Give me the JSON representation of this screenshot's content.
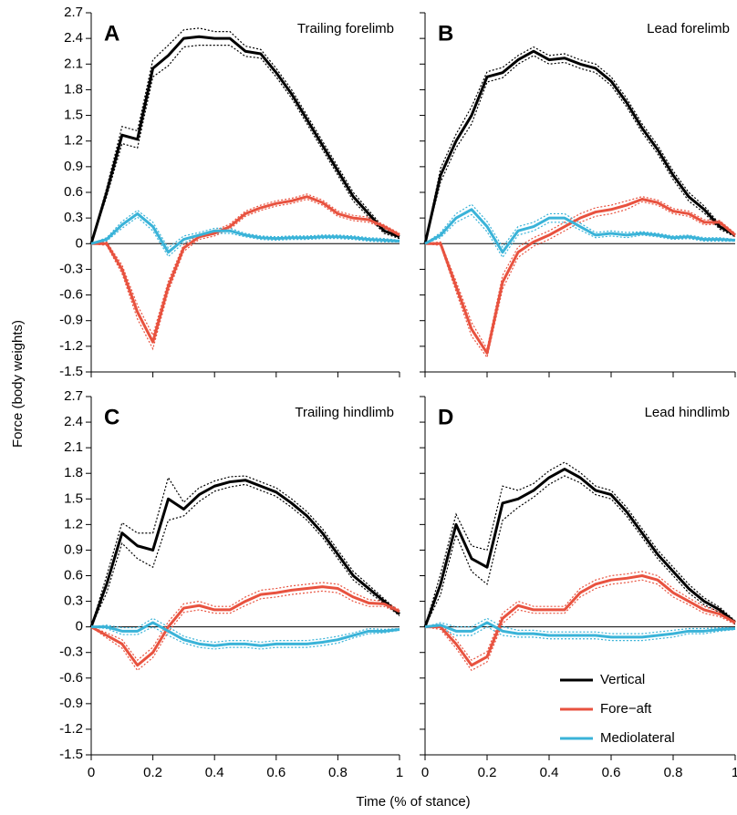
{
  "ylabel": "Force (body weights)",
  "xlabel": "Time (% of stance)",
  "chart_data": [
    {
      "type": "line",
      "panel_label": "A",
      "title": "Trailing forelimb",
      "ytick_labels": true,
      "xtick_labels": false,
      "zero_line": true,
      "x": [
        0,
        0.05,
        0.1,
        0.15,
        0.2,
        0.25,
        0.3,
        0.35,
        0.4,
        0.45,
        0.5,
        0.55,
        0.6,
        0.65,
        0.7,
        0.75,
        0.8,
        0.85,
        0.9,
        0.95,
        1
      ],
      "xlim": [
        0,
        1
      ],
      "xticks": [
        0,
        0.2,
        0.4,
        0.6,
        0.8,
        1
      ],
      "ylim": [
        -1.5,
        2.7
      ],
      "yticks": [
        -1.5,
        -1.2,
        -0.9,
        -0.6,
        -0.3,
        0,
        0.3,
        0.6,
        0.9,
        1.2,
        1.5,
        1.8,
        2.1,
        2.4,
        2.7
      ],
      "series": [
        {
          "color": "#000000",
          "values": [
            0,
            0.6,
            1.27,
            1.22,
            2.05,
            2.2,
            2.4,
            2.42,
            2.4,
            2.4,
            2.25,
            2.22,
            2.0,
            1.75,
            1.45,
            1.15,
            0.85,
            0.55,
            0.35,
            0.15,
            0.08
          ],
          "errors": [
            0,
            0.05,
            0.1,
            0.1,
            0.1,
            0.12,
            0.1,
            0.1,
            0.08,
            0.08,
            0.06,
            0.05,
            0.05,
            0.05,
            0.05,
            0.05,
            0.05,
            0.05,
            0.04,
            0.03,
            0.02
          ]
        },
        {
          "color": "#e8523f",
          "values": [
            0,
            0,
            -0.3,
            -0.8,
            -1.15,
            -0.5,
            -0.05,
            0.08,
            0.12,
            0.2,
            0.35,
            0.42,
            0.47,
            0.5,
            0.55,
            0.48,
            0.35,
            0.3,
            0.28,
            0.2,
            0.1
          ],
          "errors": [
            0,
            0.02,
            0.05,
            0.08,
            0.08,
            0.06,
            0.04,
            0.03,
            0.03,
            0.03,
            0.03,
            0.03,
            0.03,
            0.03,
            0.03,
            0.03,
            0.03,
            0.03,
            0.03,
            0.02,
            0.02
          ]
        },
        {
          "color": "#3ab3d8",
          "values": [
            0,
            0.05,
            0.22,
            0.35,
            0.2,
            -0.1,
            0.05,
            0.1,
            0.15,
            0.15,
            0.1,
            0.07,
            0.06,
            0.07,
            0.07,
            0.08,
            0.08,
            0.07,
            0.05,
            0.04,
            0.03
          ],
          "errors": [
            0,
            0.02,
            0.04,
            0.04,
            0.05,
            0.05,
            0.04,
            0.03,
            0.03,
            0.03,
            0.02,
            0.02,
            0.02,
            0.02,
            0.02,
            0.02,
            0.02,
            0.02,
            0.02,
            0.02,
            0.01
          ]
        }
      ]
    },
    {
      "type": "line",
      "panel_label": "B",
      "title": "Lead forelimb",
      "ytick_labels": false,
      "xtick_labels": false,
      "zero_line": true,
      "x": [
        0,
        0.05,
        0.1,
        0.15,
        0.2,
        0.25,
        0.3,
        0.35,
        0.4,
        0.45,
        0.5,
        0.55,
        0.6,
        0.65,
        0.7,
        0.75,
        0.8,
        0.85,
        0.9,
        0.95,
        1
      ],
      "xlim": [
        0,
        1
      ],
      "xticks": [
        0,
        0.2,
        0.4,
        0.6,
        0.8,
        1
      ],
      "ylim": [
        -1.5,
        2.7
      ],
      "yticks": [
        -1.5,
        -1.2,
        -0.9,
        -0.6,
        -0.3,
        0,
        0.3,
        0.6,
        0.9,
        1.2,
        1.5,
        1.8,
        2.1,
        2.4,
        2.7
      ],
      "series": [
        {
          "color": "#000000",
          "values": [
            0,
            0.8,
            1.2,
            1.5,
            1.95,
            2.0,
            2.15,
            2.25,
            2.15,
            2.17,
            2.1,
            2.05,
            1.9,
            1.65,
            1.35,
            1.1,
            0.8,
            0.55,
            0.4,
            0.2,
            0.1
          ],
          "errors": [
            0,
            0.08,
            0.08,
            0.1,
            0.06,
            0.06,
            0.05,
            0.05,
            0.05,
            0.05,
            0.05,
            0.05,
            0.05,
            0.05,
            0.05,
            0.05,
            0.05,
            0.05,
            0.04,
            0.03,
            0.02
          ]
        },
        {
          "color": "#e8523f",
          "values": [
            0,
            0,
            -0.5,
            -1.0,
            -1.28,
            -0.45,
            -0.1,
            0.02,
            0.1,
            0.2,
            0.3,
            0.37,
            0.4,
            0.45,
            0.52,
            0.48,
            0.38,
            0.35,
            0.25,
            0.25,
            0.1
          ],
          "errors": [
            0,
            0.02,
            0.06,
            0.08,
            0.05,
            0.08,
            0.06,
            0.05,
            0.05,
            0.05,
            0.05,
            0.05,
            0.05,
            0.05,
            0.03,
            0.03,
            0.03,
            0.03,
            0.03,
            0.02,
            0.02
          ]
        },
        {
          "color": "#3ab3d8",
          "values": [
            0,
            0.1,
            0.3,
            0.4,
            0.2,
            -0.1,
            0.15,
            0.2,
            0.3,
            0.3,
            0.2,
            0.1,
            0.12,
            0.1,
            0.12,
            0.1,
            0.07,
            0.08,
            0.05,
            0.05,
            0.04
          ],
          "errors": [
            0,
            0.03,
            0.05,
            0.06,
            0.06,
            0.06,
            0.05,
            0.05,
            0.05,
            0.05,
            0.04,
            0.03,
            0.03,
            0.03,
            0.02,
            0.02,
            0.02,
            0.02,
            0.02,
            0.02,
            0.01
          ]
        }
      ]
    },
    {
      "type": "line",
      "panel_label": "C",
      "title": "Trailing hindlimb",
      "ytick_labels": true,
      "xtick_labels": true,
      "zero_line": true,
      "x": [
        0,
        0.05,
        0.1,
        0.15,
        0.2,
        0.25,
        0.3,
        0.35,
        0.4,
        0.45,
        0.5,
        0.55,
        0.6,
        0.65,
        0.7,
        0.75,
        0.8,
        0.85,
        0.9,
        0.95,
        1
      ],
      "xlim": [
        0,
        1
      ],
      "xticks": [
        0,
        0.2,
        0.4,
        0.6,
        0.8,
        1
      ],
      "ylim": [
        -1.5,
        2.7
      ],
      "yticks": [
        -1.5,
        -1.2,
        -0.9,
        -0.6,
        -0.3,
        0,
        0.3,
        0.6,
        0.9,
        1.2,
        1.5,
        1.8,
        2.1,
        2.4,
        2.7
      ],
      "series": [
        {
          "color": "#000000",
          "values": [
            0,
            0.5,
            1.1,
            0.95,
            0.9,
            1.5,
            1.38,
            1.55,
            1.65,
            1.7,
            1.72,
            1.65,
            1.58,
            1.45,
            1.3,
            1.1,
            0.85,
            0.6,
            0.45,
            0.3,
            0.15
          ],
          "errors": [
            0,
            0.1,
            0.12,
            0.15,
            0.2,
            0.25,
            0.08,
            0.08,
            0.06,
            0.06,
            0.05,
            0.05,
            0.05,
            0.05,
            0.05,
            0.05,
            0.05,
            0.05,
            0.04,
            0.03,
            0.02
          ]
        },
        {
          "color": "#e8523f",
          "values": [
            0,
            -0.1,
            -0.2,
            -0.45,
            -0.3,
            0,
            0.22,
            0.25,
            0.2,
            0.2,
            0.3,
            0.38,
            0.4,
            0.43,
            0.45,
            0.47,
            0.45,
            0.35,
            0.28,
            0.27,
            0.18
          ],
          "errors": [
            0,
            0.03,
            0.05,
            0.06,
            0.06,
            0.06,
            0.05,
            0.05,
            0.04,
            0.04,
            0.05,
            0.05,
            0.05,
            0.05,
            0.05,
            0.05,
            0.05,
            0.05,
            0.04,
            0.03,
            0.02
          ]
        },
        {
          "color": "#3ab3d8",
          "values": [
            0,
            0,
            -0.05,
            -0.05,
            0.05,
            -0.05,
            -0.15,
            -0.2,
            -0.22,
            -0.2,
            -0.2,
            -0.22,
            -0.2,
            -0.2,
            -0.2,
            -0.18,
            -0.15,
            -0.1,
            -0.05,
            -0.05,
            -0.03
          ],
          "errors": [
            0,
            0.02,
            0.04,
            0.04,
            0.05,
            0.05,
            0.04,
            0.04,
            0.04,
            0.04,
            0.04,
            0.04,
            0.04,
            0.04,
            0.04,
            0.04,
            0.04,
            0.03,
            0.03,
            0.02,
            0.01
          ]
        }
      ]
    },
    {
      "type": "line",
      "panel_label": "D",
      "title": "Lead hindlimb",
      "ytick_labels": false,
      "xtick_labels": true,
      "zero_line": true,
      "legend": "lower right",
      "x": [
        0,
        0.05,
        0.1,
        0.15,
        0.2,
        0.25,
        0.3,
        0.35,
        0.4,
        0.45,
        0.5,
        0.55,
        0.6,
        0.65,
        0.7,
        0.75,
        0.8,
        0.85,
        0.9,
        0.95,
        1
      ],
      "xlim": [
        0,
        1
      ],
      "xticks": [
        0,
        0.2,
        0.4,
        0.6,
        0.8,
        1
      ],
      "ylim": [
        -1.5,
        2.7
      ],
      "yticks": [
        -1.5,
        -1.2,
        -0.9,
        -0.6,
        -0.3,
        0,
        0.3,
        0.6,
        0.9,
        1.2,
        1.5,
        1.8,
        2.1,
        2.4,
        2.7
      ],
      "series": [
        {
          "name": "Vertical",
          "color": "#000000",
          "values": [
            0,
            0.5,
            1.2,
            0.8,
            0.7,
            1.45,
            1.5,
            1.6,
            1.75,
            1.85,
            1.75,
            1.6,
            1.55,
            1.35,
            1.1,
            0.85,
            0.65,
            0.45,
            0.3,
            0.2,
            0.05
          ],
          "errors": [
            0,
            0.12,
            0.12,
            0.15,
            0.2,
            0.2,
            0.1,
            0.08,
            0.08,
            0.08,
            0.06,
            0.05,
            0.05,
            0.05,
            0.05,
            0.05,
            0.05,
            0.05,
            0.04,
            0.03,
            0.02
          ]
        },
        {
          "name": "Fore−aft",
          "color": "#e8523f",
          "values": [
            0,
            0,
            -0.2,
            -0.45,
            -0.35,
            0.1,
            0.25,
            0.2,
            0.2,
            0.2,
            0.4,
            0.5,
            0.55,
            0.57,
            0.6,
            0.55,
            0.4,
            0.3,
            0.2,
            0.15,
            0.05
          ],
          "errors": [
            0,
            0.03,
            0.05,
            0.06,
            0.06,
            0.06,
            0.05,
            0.04,
            0.04,
            0.04,
            0.05,
            0.05,
            0.05,
            0.05,
            0.05,
            0.05,
            0.05,
            0.04,
            0.04,
            0.03,
            0.02
          ]
        },
        {
          "name": "Mediolateral",
          "color": "#3ab3d8",
          "values": [
            0,
            0.02,
            -0.05,
            -0.05,
            0.05,
            -0.05,
            -0.08,
            -0.08,
            -0.1,
            -0.1,
            -0.1,
            -0.1,
            -0.12,
            -0.12,
            -0.12,
            -0.1,
            -0.08,
            -0.05,
            -0.05,
            -0.03,
            -0.02
          ],
          "errors": [
            0,
            0.03,
            0.05,
            0.05,
            0.05,
            0.05,
            0.04,
            0.04,
            0.04,
            0.04,
            0.04,
            0.04,
            0.04,
            0.04,
            0.04,
            0.04,
            0.04,
            0.03,
            0.03,
            0.02,
            0.01
          ]
        }
      ]
    }
  ]
}
